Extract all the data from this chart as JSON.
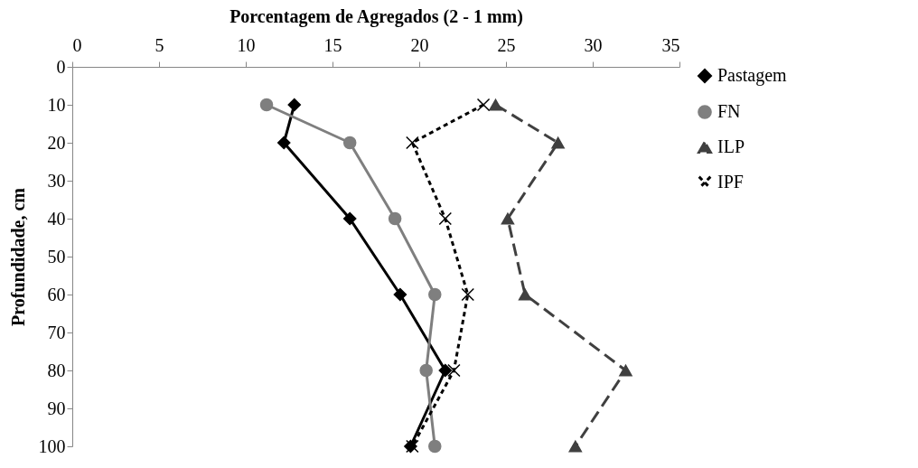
{
  "chart_data": {
    "type": "line",
    "xlabel": "Porcentagem de Agregados (2 - 1 mm)",
    "ylabel": "Profundidade, cm",
    "xlim": [
      0,
      35
    ],
    "xticks": [
      0,
      5,
      10,
      15,
      20,
      25,
      30,
      35
    ],
    "ylim": [
      100,
      0
    ],
    "yticks": [
      0,
      10,
      20,
      30,
      40,
      50,
      60,
      70,
      80,
      90,
      100
    ],
    "grid": false,
    "legend": "right",
    "series": [
      {
        "name": "Pastagem",
        "color": "#000000",
        "marker": "diamond",
        "line_style": "solid",
        "x": [
          12.8,
          12.2,
          16.0,
          18.9,
          21.5,
          19.5
        ],
        "values": [
          10,
          20,
          40,
          60,
          80,
          100
        ]
      },
      {
        "name": "FN",
        "color": "#7f7f7f",
        "marker": "circle",
        "line_style": "solid",
        "x": [
          11.2,
          16.0,
          18.6,
          20.9,
          20.4,
          20.9
        ],
        "values": [
          10,
          20,
          40,
          60,
          80,
          100
        ]
      },
      {
        "name": "ILP",
        "color": "#404040",
        "marker": "triangle",
        "line_style": "dashed",
        "x": [
          24.4,
          28.0,
          25.1,
          26.1,
          31.9,
          29.0
        ],
        "values": [
          10,
          20,
          40,
          60,
          80,
          100
        ]
      },
      {
        "name": "IPF",
        "color": "#000000",
        "marker": "cross",
        "line_style": "dotted",
        "x": [
          23.7,
          19.6,
          21.5,
          22.8,
          22.0,
          19.6
        ],
        "values": [
          10,
          20,
          40,
          60,
          80,
          100
        ]
      }
    ]
  }
}
